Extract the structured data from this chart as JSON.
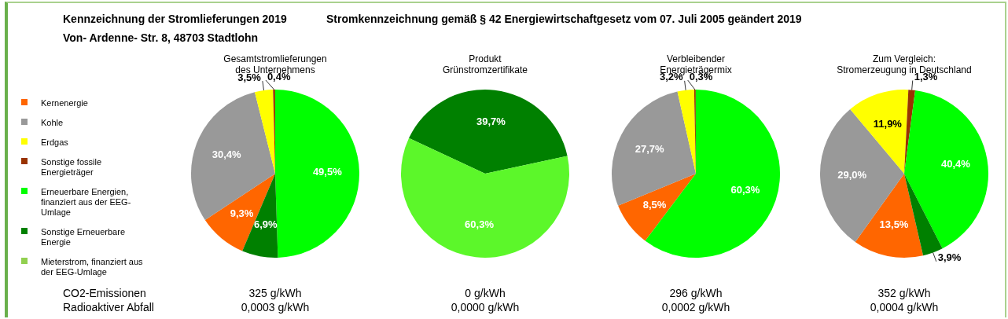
{
  "chart_data": [
    {
      "type": "other",
      "title": "Kennzeichnung der Stromlieferungen 2019",
      "subtitle": "Stromkennzeichnung gemäß § 42 Energiewirtschaftgesetz vom 07. Juli 2005 geändert 2019",
      "annotations": [
        "Von- Ardenne- Str. 8, 48703 Stadtlohn",
        "CO2-Emissionen",
        "Radioaktiver Abfall"
      ]
    },
    {
      "type": "pie",
      "title": "Gesamtstromlieferungen\ndes Unternehmens",
      "legend": "left",
      "categories": [
        "Kernenergie",
        "Kohle",
        "Erdgas",
        "Sonstige fossile Energieträger",
        "Erneuerbare Energien, finanziert aus der EEG-Umlage",
        "Sonstige Erneuerbare Energie",
        "Mieterstrom, finanziert aus der EEG-Umlage"
      ],
      "values": [
        9.3,
        30.4,
        3.5,
        0.4,
        49.5,
        6.9,
        0
      ],
      "colors": [
        "#ff6600",
        "#999999",
        "#ffff00",
        "#993300",
        "#00ff00",
        "#008000",
        "#92d050"
      ],
      "value_labels": [
        "9,3%",
        "30,4%",
        "3,5%",
        "0,4%",
        "49,5%",
        "6,9%",
        null
      ],
      "annotations": [
        "325 g/kWh",
        "0,0003 g/kWh"
      ]
    },
    {
      "type": "pie",
      "title": "Produkt\nGrünstromzertifikate",
      "categories": [
        null,
        null
      ],
      "values": [
        39.7,
        60.3
      ],
      "colors": [
        "#008000",
        "#5cf72a"
      ],
      "value_labels": [
        "39,7%",
        "60,3%"
      ],
      "annotations": [
        "0 g/kWh",
        "0,0000 g/kWh"
      ]
    },
    {
      "type": "pie",
      "title": "Verbleibender\nEnergieträgermix",
      "categories": [
        null,
        null,
        null,
        null,
        null
      ],
      "values": [
        8.5,
        27.7,
        3.2,
        0.3,
        60.3
      ],
      "colors": [
        "#ff6600",
        "#999999",
        "#ffff00",
        "#993300",
        "#00ff00"
      ],
      "value_labels": [
        "8,5%",
        "27,7%",
        "3,2%",
        "0,3%",
        "60,3%"
      ],
      "annotations": [
        "296 g/kWh",
        "0,0002 g/kWh"
      ]
    },
    {
      "type": "pie",
      "title": "Zum Vergleich:\nStromerzeugung in Deutschland",
      "categories": [
        null,
        null,
        null,
        null,
        null,
        null
      ],
      "values": [
        13.5,
        29.0,
        11.9,
        1.3,
        40.4,
        3.9
      ],
      "colors": [
        "#ff6600",
        "#999999",
        "#ffff00",
        "#993300",
        "#00ff00",
        "#008000"
      ],
      "value_labels": [
        "13,5%",
        "29,0%",
        "11,9%",
        "1,3%",
        "40,4%",
        "3,9%"
      ],
      "annotations": [
        "352 g/kWh",
        "0,0004 g/kWh"
      ]
    }
  ]
}
